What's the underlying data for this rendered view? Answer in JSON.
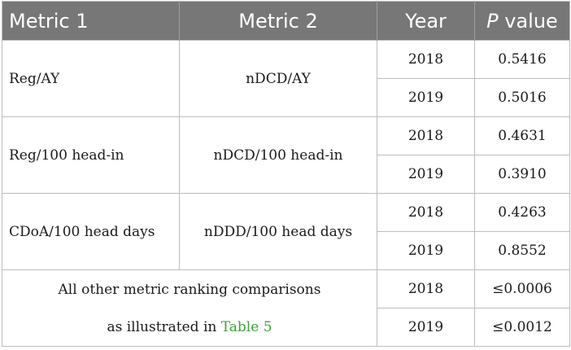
{
  "headers": {
    "metric1": "Metric 1",
    "metric2": "Metric 2",
    "year": "Year",
    "p_italic": "P",
    "p_rest": " value"
  },
  "groups": [
    {
      "metric1": "Reg/AY",
      "metric2": "nDCD/AY",
      "rows": [
        {
          "year": "2018",
          "p": "0.5416"
        },
        {
          "year": "2019",
          "p": "0.5016"
        }
      ]
    },
    {
      "metric1": "Reg/100 head-in",
      "metric2": "nDCD/100 head-in",
      "rows": [
        {
          "year": "2018",
          "p": "0.4631"
        },
        {
          "year": "2019",
          "p": "0.3910"
        }
      ]
    },
    {
      "metric1": "CDoA/100 head days",
      "metric2": "nDDD/100 head days",
      "rows": [
        {
          "year": "2018",
          "p": "0.4263"
        },
        {
          "year": "2019",
          "p": "0.8552"
        }
      ]
    }
  ],
  "footer": {
    "line1": "All other metric ranking comparisons",
    "line2_prefix": "as illustrated in ",
    "line2_link": "Table 5",
    "rows": [
      {
        "year": "2018",
        "p": "≤0.0006"
      },
      {
        "year": "2019",
        "p": "≤0.0012"
      }
    ]
  }
}
